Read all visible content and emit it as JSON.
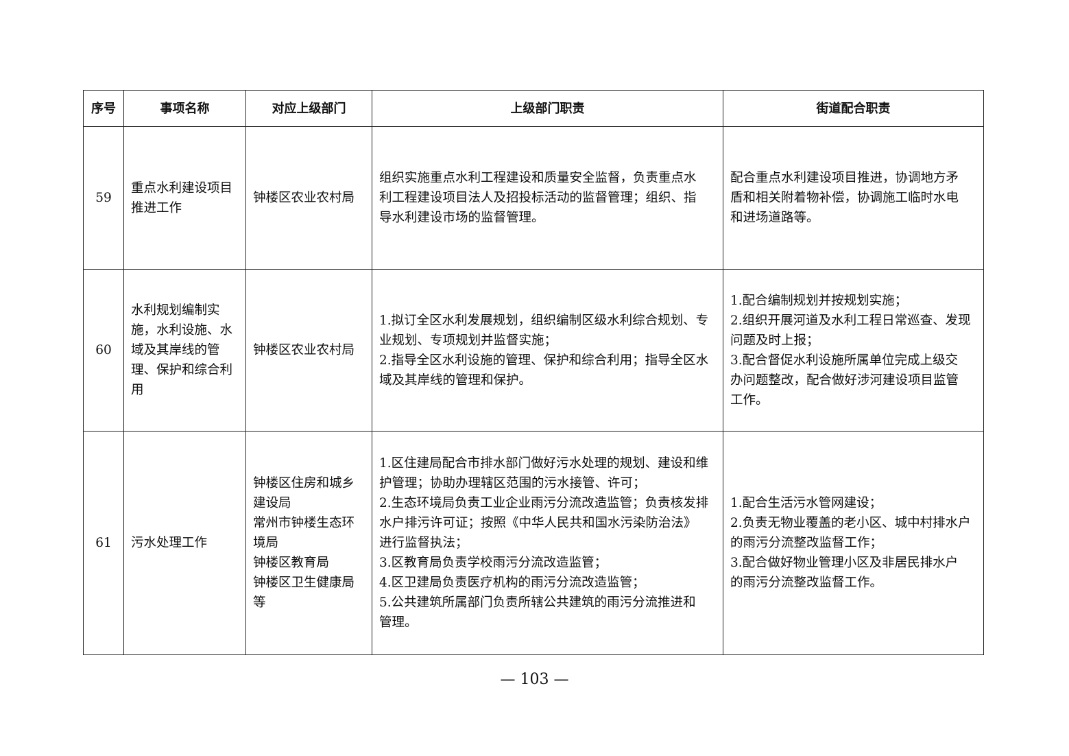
{
  "table": {
    "headers": [
      "序号",
      "事项名称",
      "对应上级部门",
      "上级部门职责",
      "街道配合职责"
    ],
    "rows": [
      {
        "no": "59",
        "name": "重点水利建设项目\n推进工作",
        "dept": "钟楼区农业农村局",
        "duty": "组织实施重点水利工程建设和质量安全监督，负责重点水\n利工程建设项目法人及招投标活动的监督管理；组织、指\n导水利建设市场的监督管理。",
        "street": "配合重点水利建设项目推进，协调地方矛\n盾和相关附着物补偿，协调施工临时水电\n和进场道路等。"
      },
      {
        "no": "60",
        "name": "水利规划编制实\n施，水利设施、水\n域及其岸线的管\n理、保护和综合利\n用",
        "dept": "钟楼区农业农村局",
        "duty": "1.拟订全区水利发展规划，组织编制区级水利综合规划、专\n业规划、专项规划并监督实施；\n2.指导全区水利设施的管理、保护和综合利用；指导全区水\n域及其岸线的管理和保护。",
        "street": "1.配合编制规划并按规划实施；\n2.组织开展河道及水利工程日常巡查、发现\n问题及时上报；\n3.配合督促水利设施所属单位完成上级交\n办问题整改，配合做好涉河建设项目监管\n工作。"
      },
      {
        "no": "61",
        "name": "污水处理工作",
        "dept": "钟楼区住房和城乡\n建设局\n常州市钟楼生态环\n境局\n钟楼区教育局\n钟楼区卫生健康局\n等",
        "duty": "1.区住建局配合市排水部门做好污水处理的规划、建设和维\n护管理；协助办理辖区范围的污水接管、许可；\n2.生态环境局负责工业企业雨污分流改造监管；负责核发排\n水户排污许可证；按照《中华人民共和国水污染防治法》\n进行监督执法；\n3.区教育局负责学校雨污分流改造监管；\n4.区卫建局负责医疗机构的雨污分流改造监管；\n5.公共建筑所属部门负责所辖公共建筑的雨污分流推进和\n管理。",
        "street": "1.配合生活污水管网建设；\n2.负责无物业覆盖的老小区、城中村排水户\n的雨污分流整改监督工作；\n3.配合做好物业管理小区及非居民排水户\n的雨污分流整改监督工作。"
      }
    ]
  },
  "footer": {
    "page_number": "— 103 —"
  }
}
